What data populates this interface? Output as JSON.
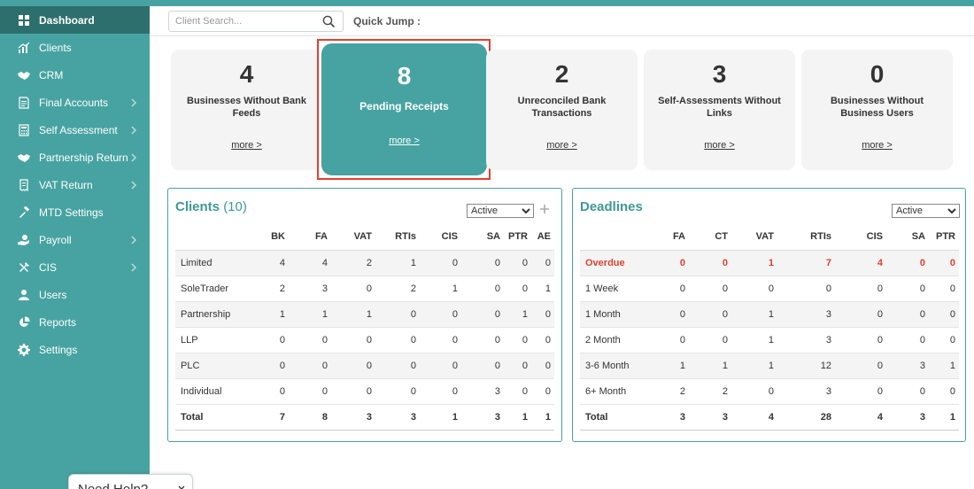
{
  "sidebar": {
    "items": [
      {
        "label": "Dashboard",
        "icon": "dashboard-icon",
        "active": true,
        "submenu": false
      },
      {
        "label": "Clients",
        "icon": "chart-icon",
        "submenu": false
      },
      {
        "label": "CRM",
        "icon": "handshake-icon",
        "submenu": false
      },
      {
        "label": "Final Accounts",
        "icon": "document-icon",
        "submenu": true
      },
      {
        "label": "Self Assessment",
        "icon": "calculator-icon",
        "submenu": true
      },
      {
        "label": "Partnership Return",
        "icon": "handshake-icon",
        "submenu": true
      },
      {
        "label": "VAT Return",
        "icon": "receipt-icon",
        "submenu": true
      },
      {
        "label": "MTD Settings",
        "icon": "gear-gavel-icon",
        "submenu": false
      },
      {
        "label": "Payroll",
        "icon": "hand-money-icon",
        "submenu": true
      },
      {
        "label": "CIS",
        "icon": "tools-icon",
        "submenu": true
      },
      {
        "label": "Users",
        "icon": "user-icon",
        "submenu": false
      },
      {
        "label": "Reports",
        "icon": "pie-chart-icon",
        "submenu": false
      },
      {
        "label": "Settings",
        "icon": "gear-icon",
        "submenu": false
      }
    ],
    "help_label": "Need Help?"
  },
  "topbar": {
    "search_placeholder": "Client Search...",
    "quick_jump_label": "Quick Jump :"
  },
  "stats": [
    {
      "value": "4",
      "label": "Businesses Without Bank Feeds",
      "more": "more >"
    },
    {
      "value": "8",
      "label": "Pending Receipts",
      "more": "more >"
    },
    {
      "value": "2",
      "label": "Unreconciled Bank Transactions",
      "more": "more >"
    },
    {
      "value": "3",
      "label": "Self-Assessments Without Links",
      "more": "more >"
    },
    {
      "value": "0",
      "label": "Businesses Without Business Users",
      "more": "more >"
    }
  ],
  "clients_panel": {
    "title": "Clients",
    "count": "(10)",
    "filter_value": "Active",
    "columns": [
      "",
      "BK",
      "FA",
      "VAT",
      "RTIs",
      "CIS",
      "SA",
      "PTR",
      "AE"
    ],
    "rows": [
      [
        "Limited",
        "4",
        "4",
        "2",
        "1",
        "0",
        "0",
        "0",
        "0"
      ],
      [
        "SoleTrader",
        "2",
        "3",
        "0",
        "2",
        "1",
        "0",
        "0",
        "1"
      ],
      [
        "Partnership",
        "1",
        "1",
        "1",
        "0",
        "0",
        "0",
        "1",
        "0"
      ],
      [
        "LLP",
        "0",
        "0",
        "0",
        "0",
        "0",
        "0",
        "0",
        "0"
      ],
      [
        "PLC",
        "0",
        "0",
        "0",
        "0",
        "0",
        "0",
        "0",
        "0"
      ],
      [
        "Individual",
        "0",
        "0",
        "0",
        "0",
        "0",
        "3",
        "0",
        "0"
      ]
    ],
    "total": [
      "Total",
      "7",
      "8",
      "3",
      "3",
      "1",
      "3",
      "1",
      "1"
    ]
  },
  "deadlines_panel": {
    "title": "Deadlines",
    "filter_value": "Active",
    "columns": [
      "",
      "FA",
      "CT",
      "VAT",
      "RTIs",
      "CIS",
      "SA",
      "PTR"
    ],
    "rows": [
      [
        "Overdue",
        "0",
        "0",
        "1",
        "7",
        "4",
        "0",
        "0"
      ],
      [
        "1 Week",
        "0",
        "0",
        "0",
        "0",
        "0",
        "0",
        "0"
      ],
      [
        "1 Month",
        "0",
        "0",
        "1",
        "3",
        "0",
        "0",
        "0"
      ],
      [
        "2 Month",
        "0",
        "0",
        "1",
        "3",
        "0",
        "0",
        "0"
      ],
      [
        "3-6 Month",
        "1",
        "1",
        "1",
        "12",
        "0",
        "3",
        "1"
      ],
      [
        "6+ Month",
        "2",
        "2",
        "0",
        "3",
        "0",
        "0",
        "0"
      ]
    ],
    "total": [
      "Total",
      "3",
      "3",
      "4",
      "28",
      "4",
      "3",
      "1"
    ]
  },
  "colors": {
    "teal": "#47a3a1",
    "teal_dark": "#2d6f6d",
    "highlight_border": "#e0412f",
    "overdue": "#e0412f"
  }
}
